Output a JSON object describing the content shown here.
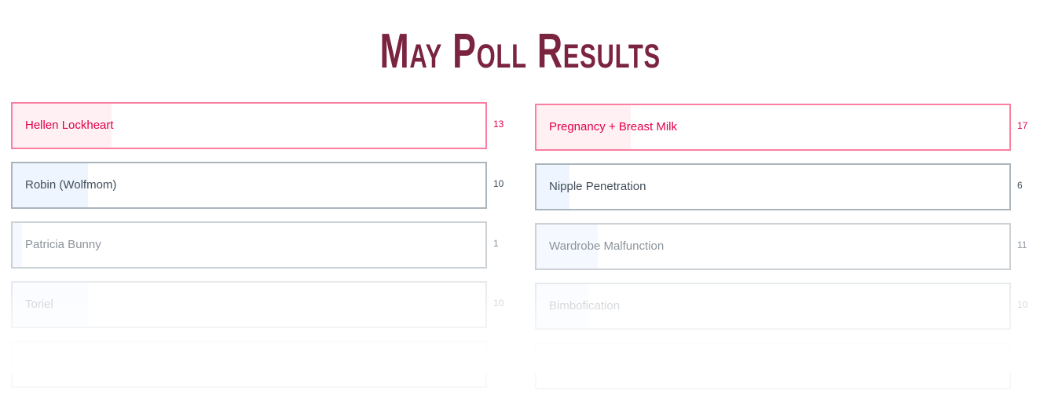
{
  "title": "May Poll Results",
  "colors": {
    "title": "#7b2440",
    "leader_border": "#fc7ea1",
    "leader_text": "#e0004b",
    "leader_fill": "#fff0f3",
    "default_border": "#a3adb6",
    "default_fill": "#eef5ff"
  },
  "left_poll": [
    {
      "label": "Hellen Lockheart",
      "votes": "13",
      "fill_percent": 21,
      "leader": true
    },
    {
      "label": "Robin (Wolfmom)",
      "votes": "10",
      "fill_percent": 16,
      "leader": false
    },
    {
      "label": "Patricia Bunny",
      "votes": "1",
      "fill_percent": 2,
      "leader": false
    },
    {
      "label": "Toriel",
      "votes": "10",
      "fill_percent": 16,
      "leader": false
    },
    {
      "label": "",
      "votes": "",
      "fill_percent": 0,
      "leader": false
    }
  ],
  "right_poll": [
    {
      "label": "Pregnancy + Breast Milk",
      "votes": "17",
      "fill_percent": 20,
      "leader": true
    },
    {
      "label": "Nipple Penetration",
      "votes": "6",
      "fill_percent": 7,
      "leader": false
    },
    {
      "label": "Wardrobe Malfunction",
      "votes": "11",
      "fill_percent": 13,
      "leader": false
    },
    {
      "label": "Bimbofication",
      "votes": "10",
      "fill_percent": 11,
      "leader": false
    },
    {
      "label": "",
      "votes": "",
      "fill_percent": 0,
      "leader": false
    }
  ]
}
